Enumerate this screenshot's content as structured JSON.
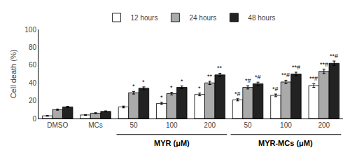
{
  "chart_data": {
    "type": "bar",
    "categories": [
      "DMSO",
      "MCs",
      "50",
      "100",
      "200",
      "50",
      "100",
      "200"
    ],
    "series": [
      {
        "name": "12 hours",
        "color": "white",
        "values": [
          3,
          4,
          13,
          17,
          27,
          21,
          26,
          37
        ],
        "errors": [
          0.4,
          0.4,
          1.0,
          1.2,
          1.5,
          1.2,
          1.5,
          2.0
        ]
      },
      {
        "name": "24 hours",
        "color": "#aaaaaa",
        "values": [
          10,
          6,
          29,
          28,
          40,
          35,
          41,
          53
        ],
        "errors": [
          0.7,
          0.5,
          1.5,
          1.5,
          1.8,
          1.8,
          2.0,
          2.5
        ]
      },
      {
        "name": "48 hours",
        "color": "#222222",
        "values": [
          13,
          8,
          34,
          35,
          49,
          39,
          50,
          62
        ],
        "errors": [
          0.7,
          0.6,
          1.5,
          1.5,
          1.8,
          1.8,
          2.0,
          2.5
        ]
      }
    ],
    "ylabel": "Cell death (%)",
    "ylim": [
      0,
      100
    ],
    "yticks": [
      0,
      20,
      40,
      60,
      80,
      100
    ],
    "grid": false,
    "legend": "top",
    "groups": [
      {
        "label": "MYR (μM)",
        "start": 2,
        "end": 4
      },
      {
        "label": "MYR-MCs (μM)",
        "start": 5,
        "end": 7
      }
    ],
    "annotations": [
      {
        "category": 2,
        "series": 1,
        "text": "*"
      },
      {
        "category": 2,
        "series": 2,
        "text": "*"
      },
      {
        "category": 3,
        "series": 0,
        "text": "*"
      },
      {
        "category": 3,
        "series": 1,
        "text": "*"
      },
      {
        "category": 3,
        "series": 2,
        "text": "*"
      },
      {
        "category": 4,
        "series": 0,
        "text": "*"
      },
      {
        "category": 4,
        "series": 1,
        "text": "**"
      },
      {
        "category": 4,
        "series": 2,
        "text": "**"
      },
      {
        "category": 5,
        "series": 0,
        "text": "*#"
      },
      {
        "category": 5,
        "series": 1,
        "text": "*#"
      },
      {
        "category": 5,
        "series": 2,
        "text": "*#"
      },
      {
        "category": 6,
        "series": 0,
        "text": "*#"
      },
      {
        "category": 6,
        "series": 1,
        "text": "**#"
      },
      {
        "category": 6,
        "series": 2,
        "text": "**#"
      },
      {
        "category": 7,
        "series": 0,
        "text": "**#"
      },
      {
        "category": 7,
        "series": 1,
        "text": "**#"
      },
      {
        "category": 7,
        "series": 2,
        "text": "**#"
      }
    ]
  }
}
